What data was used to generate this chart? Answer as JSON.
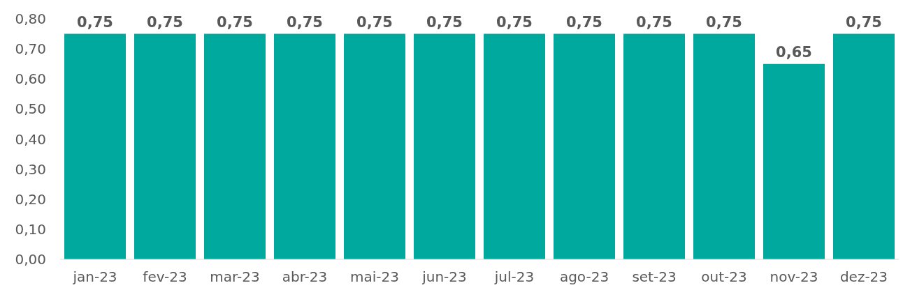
{
  "chart_data": {
    "type": "bar",
    "categories": [
      "jan-23",
      "fev-23",
      "mar-23",
      "abr-23",
      "mai-23",
      "jun-23",
      "jul-23",
      "ago-23",
      "set-23",
      "out-23",
      "nov-23",
      "dez-23"
    ],
    "values": [
      0.75,
      0.75,
      0.75,
      0.75,
      0.75,
      0.75,
      0.75,
      0.75,
      0.75,
      0.75,
      0.65,
      0.75
    ],
    "value_labels": [
      "0,75",
      "0,75",
      "0,75",
      "0,75",
      "0,75",
      "0,75",
      "0,75",
      "0,75",
      "0,75",
      "0,75",
      "0,65",
      "0,75"
    ],
    "color": "#00a99d",
    "ylim": [
      0,
      0.8
    ],
    "yticks": [
      {
        "value": 0,
        "label": "0,00"
      },
      {
        "value": 0.1,
        "label": "0,10"
      },
      {
        "value": 0.2,
        "label": "0,20"
      },
      {
        "value": 0.3,
        "label": "0,30"
      },
      {
        "value": 0.4,
        "label": "0,40"
      },
      {
        "value": 0.5,
        "label": "0,50"
      },
      {
        "value": 0.6,
        "label": "0,60"
      },
      {
        "value": 0.7,
        "label": "0,70"
      },
      {
        "value": 0.8,
        "label": "0,80"
      }
    ]
  }
}
